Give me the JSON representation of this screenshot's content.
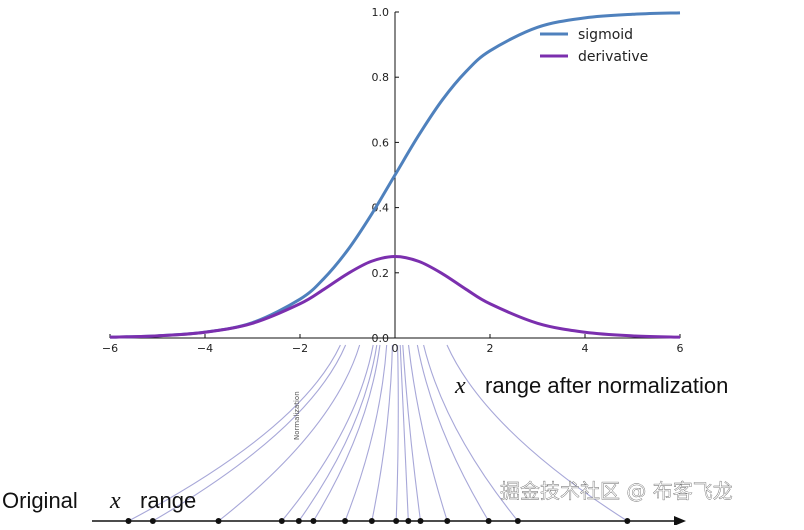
{
  "chart_data": {
    "type": "line",
    "title": "",
    "xlabel": "",
    "ylabel": "",
    "xlim": [
      -6,
      6
    ],
    "ylim": [
      0,
      1
    ],
    "x_ticks": [
      -6,
      -4,
      -2,
      0,
      2,
      4,
      6
    ],
    "x_tick_labels": [
      "−6",
      "−4",
      "−2",
      "0",
      "2",
      "4",
      "6"
    ],
    "y_ticks": [
      0,
      0.2,
      0.4,
      0.6,
      0.8,
      1.0
    ],
    "y_tick_labels": [
      "0.0",
      "0.2",
      "0.4",
      "0.6",
      "0.8",
      "1.0"
    ],
    "grid": false,
    "legend_position": "top-right",
    "x": [
      -6,
      -5,
      -4,
      -3,
      -2,
      -1.5,
      -1,
      -0.5,
      0,
      0.5,
      1,
      1.5,
      2,
      3,
      4,
      5,
      6
    ],
    "series": [
      {
        "name": "sigmoid",
        "color": "#4f81bd",
        "values": [
          0.0025,
          0.0067,
          0.018,
          0.047,
          0.119,
          0.182,
          0.269,
          0.378,
          0.5,
          0.622,
          0.731,
          0.818,
          0.881,
          0.953,
          0.982,
          0.993,
          0.9975
        ]
      },
      {
        "name": "derivative",
        "color": "#7b2fae",
        "values": [
          0.0025,
          0.0066,
          0.0177,
          0.0452,
          0.105,
          0.149,
          0.197,
          0.235,
          0.25,
          0.235,
          0.197,
          0.149,
          0.105,
          0.0452,
          0.0177,
          0.0066,
          0.0025
        ]
      }
    ]
  },
  "annotations": {
    "after_label_var": "x",
    "after_label_text": "range after normalization",
    "original_label_text": "Original",
    "original_label_var": "x",
    "original_label_suffix": "range",
    "normalization_label": "Normalization",
    "watermark": "掘金技术社区 @ 布客飞龙"
  },
  "illustration": {
    "original_points": [
      -10.5,
      -9.5,
      -6.8,
      -4.2,
      -3.5,
      -2.9,
      -1.6,
      -0.5,
      0.5,
      1.0,
      1.5,
      2.6,
      4.3,
      5.5,
      10
    ],
    "line_color": "#a7a7d8",
    "dot_color": "#111111"
  }
}
